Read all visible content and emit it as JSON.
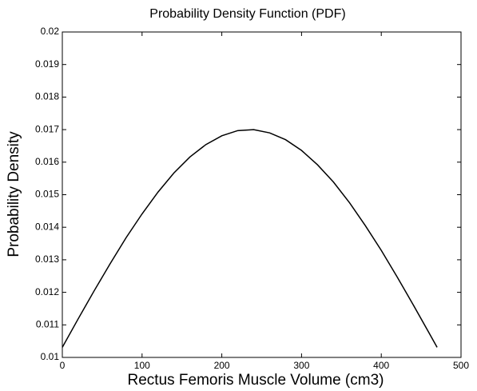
{
  "chart_data": {
    "type": "line",
    "title": "Probability Density Function (PDF)",
    "x_label": "Rectus Femoris Muscle Volume (cm3)",
    "y_label": "Probability Density",
    "x": [
      0,
      20,
      40,
      60,
      80,
      100,
      120,
      140,
      160,
      180,
      200,
      220,
      240,
      260,
      280,
      300,
      320,
      340,
      360,
      380,
      400,
      420,
      440,
      460,
      470
    ],
    "series": [
      {
        "name": "PDF",
        "color": "#000000",
        "values": [
          0.01031,
          0.01119,
          0.01205,
          0.01288,
          0.01368,
          0.01441,
          0.01508,
          0.01567,
          0.01616,
          0.01654,
          0.01681,
          0.01697,
          0.017,
          0.0169,
          0.01669,
          0.01636,
          0.01592,
          0.01539,
          0.01476,
          0.01405,
          0.01329,
          0.01247,
          0.01162,
          0.01075,
          0.01031
        ]
      }
    ],
    "xlim": [
      0,
      500
    ],
    "xticks": [
      0,
      100,
      200,
      300,
      400,
      500
    ],
    "ylim": [
      0.01,
      0.02
    ],
    "yticks": [
      0.01,
      0.011,
      0.012,
      0.013,
      0.014,
      0.015,
      0.016,
      0.017,
      0.018,
      0.019,
      0.02
    ]
  }
}
